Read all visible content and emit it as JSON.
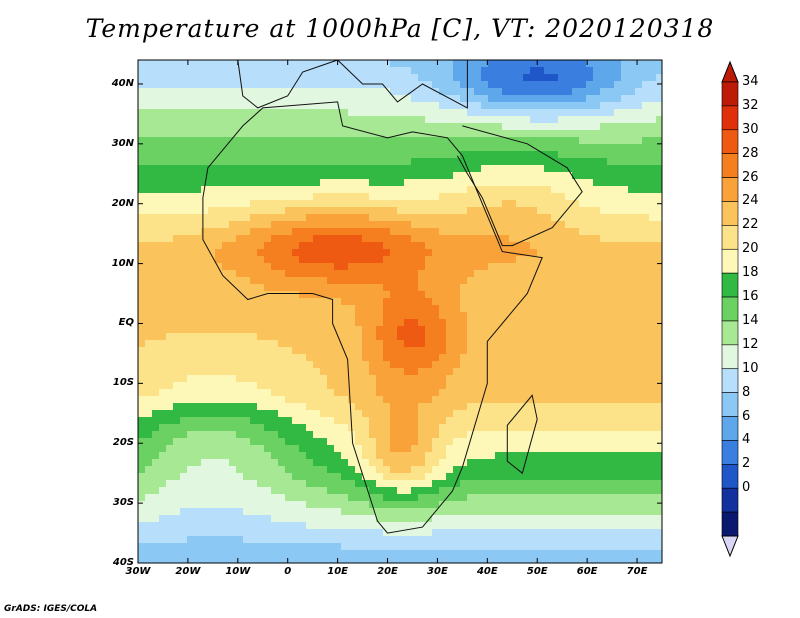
{
  "title": "Temperature at 1000hPa [C], VT: 2020120318",
  "credit": "GrADS: IGES/COLA",
  "lat_labels": [
    "40N",
    "30N",
    "20N",
    "10N",
    "EQ",
    "10S",
    "20S",
    "30S",
    "40S"
  ],
  "lon_labels": [
    "30W",
    "20W",
    "10W",
    "0",
    "10E",
    "20E",
    "30E",
    "40E",
    "50E",
    "60E",
    "70E"
  ],
  "colorbar": {
    "labels": [
      "34",
      "32",
      "30",
      "28",
      "26",
      "24",
      "22",
      "20",
      "18",
      "16",
      "14",
      "12",
      "10",
      "8",
      "6",
      "4",
      "2",
      "0"
    ],
    "colors": [
      "#bd1a08",
      "#e0300b",
      "#ef5a12",
      "#f57e1f",
      "#faa23a",
      "#fbc35b",
      "#fce288",
      "#fdf8b8",
      "#32b944",
      "#6bd163",
      "#a6e893",
      "#e1f7df",
      "#b7dffb",
      "#8cc8f4",
      "#5fa7eb",
      "#3a7ee0",
      "#1f57c8",
      "#12309e",
      "#0b1870"
    ],
    "under_color": "#d9d6f5"
  }
}
